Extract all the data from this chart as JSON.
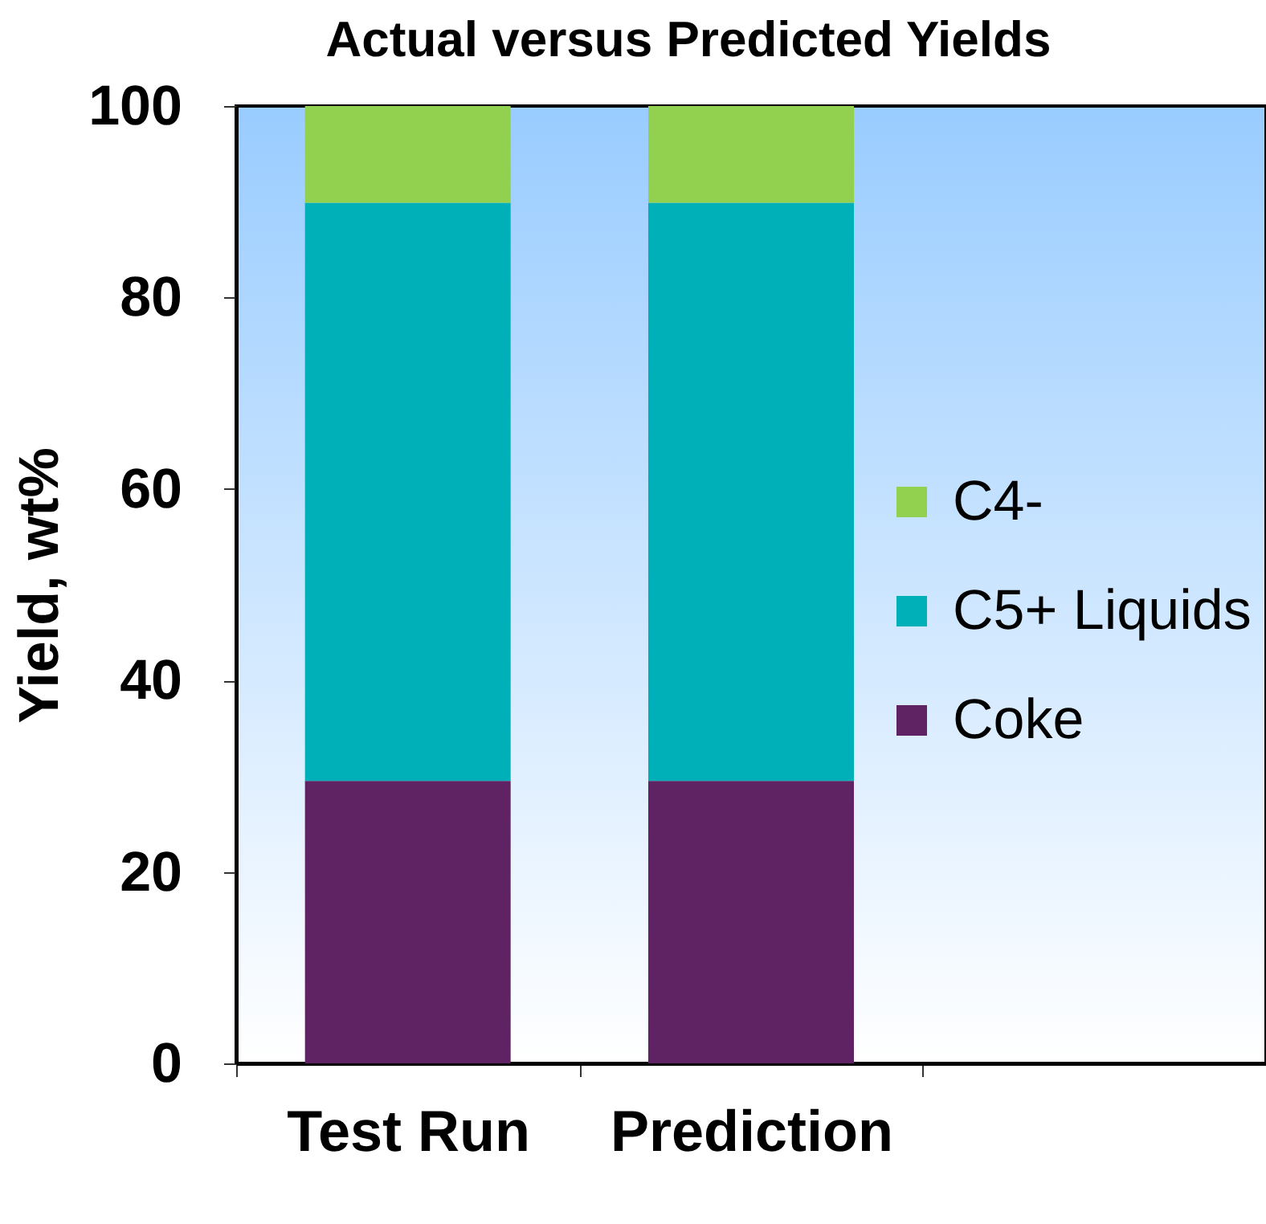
{
  "chart_data": {
    "type": "bar",
    "title": "Actual versus Predicted Yields",
    "ylabel": "Yield, wt%",
    "categories": [
      "Test Run",
      "Prediction",
      null
    ],
    "stacked": true,
    "series": [
      {
        "name": "Coke",
        "color": "#5f2262",
        "values": [
          29.5,
          29.5,
          null
        ]
      },
      {
        "name": "C5+ Liquids",
        "color": "#00b0b9",
        "values": [
          60.4,
          60.4,
          null
        ]
      },
      {
        "name": "C4-",
        "color": "#92d050",
        "values": [
          10.1,
          10.1,
          null
        ]
      }
    ],
    "ylim": [
      0,
      100
    ],
    "yticks": [
      0,
      20,
      40,
      60,
      80,
      100
    ],
    "legend": "right"
  }
}
